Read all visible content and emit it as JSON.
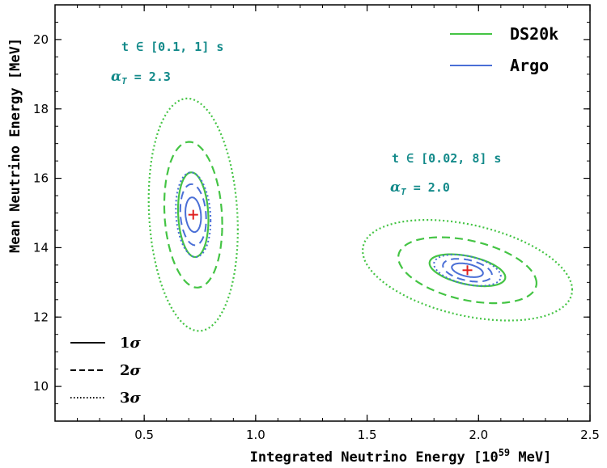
{
  "chart_data": {
    "type": "contour",
    "xlabel_main": "Integrated Neutrino Energy [10",
    "xlabel_sup": "59",
    "xlabel_end": " MeV]",
    "ylabel": "Mean Neutrino Energy [MeV]",
    "xlim": [
      0.1,
      2.5
    ],
    "ylim": [
      9.0,
      21.0
    ],
    "xticks": [
      0.5,
      1.0,
      1.5,
      2.0,
      2.5
    ],
    "xtick_labels": [
      "0.5",
      "1.0",
      "1.5",
      "2.0",
      "2.5"
    ],
    "yticks": [
      10,
      12,
      14,
      16,
      18,
      20
    ],
    "ytick_labels": [
      "10",
      "12",
      "14",
      "16",
      "18",
      "20"
    ],
    "colors": {
      "DS20k": "#44c444",
      "Argo": "#4a6fd6",
      "marker": "#e02020",
      "annotation": "#138a8a"
    },
    "legend_position": "top-right",
    "legend": [
      {
        "name": "DS20k",
        "color": "#44c444"
      },
      {
        "name": "Argo",
        "color": "#4a6fd6"
      }
    ],
    "style_legend": [
      {
        "label": "1",
        "sym": "σ",
        "style": "solid"
      },
      {
        "label": "2",
        "sym": "σ",
        "style": "dashed"
      },
      {
        "label": "3",
        "sym": "σ",
        "style": "dotted"
      }
    ],
    "annotations": [
      {
        "line1": "t ∈ [0.1, 1] s",
        "alpha_label": "α",
        "alpha_sub": "T",
        "alpha_value": " = 2.3"
      },
      {
        "line1": "t ∈ [0.02, 8] s",
        "alpha_label": "α",
        "alpha_sub": "T",
        "alpha_value": " = 2.0"
      }
    ],
    "regions": [
      {
        "center": [
          0.72,
          14.95
        ],
        "DS20k": [
          {
            "sigma": 1,
            "a": 0.068,
            "b": 1.22,
            "rot": -2.2
          },
          {
            "sigma": 2,
            "a": 0.13,
            "b": 2.1,
            "rot": -2.2
          },
          {
            "sigma": 3,
            "a": 0.2,
            "b": 3.35,
            "rot": -2.2
          }
        ],
        "Argo": [
          {
            "sigma": 1,
            "a": 0.035,
            "b": 0.5,
            "rot": -2.2
          },
          {
            "sigma": 2,
            "a": 0.058,
            "b": 0.88,
            "rot": -2.2
          },
          {
            "sigma": 3,
            "a": 0.078,
            "b": 1.22,
            "rot": -2.2
          }
        ]
      },
      {
        "center": [
          1.95,
          13.35
        ],
        "DS20k": [
          {
            "sigma": 1,
            "a": 0.17,
            "b": 0.46,
            "rot": -1.2
          },
          {
            "sigma": 2,
            "a": 0.31,
            "b": 0.95,
            "rot": -1.2
          },
          {
            "sigma": 3,
            "a": 0.47,
            "b": 1.45,
            "rot": -1.2
          }
        ],
        "Argo": [
          {
            "sigma": 1,
            "a": 0.07,
            "b": 0.2,
            "rot": -1.2
          },
          {
            "sigma": 2,
            "a": 0.11,
            "b": 0.33,
            "rot": -1.2
          },
          {
            "sigma": 3,
            "a": 0.15,
            "b": 0.45,
            "rot": -1.2
          }
        ]
      }
    ]
  }
}
